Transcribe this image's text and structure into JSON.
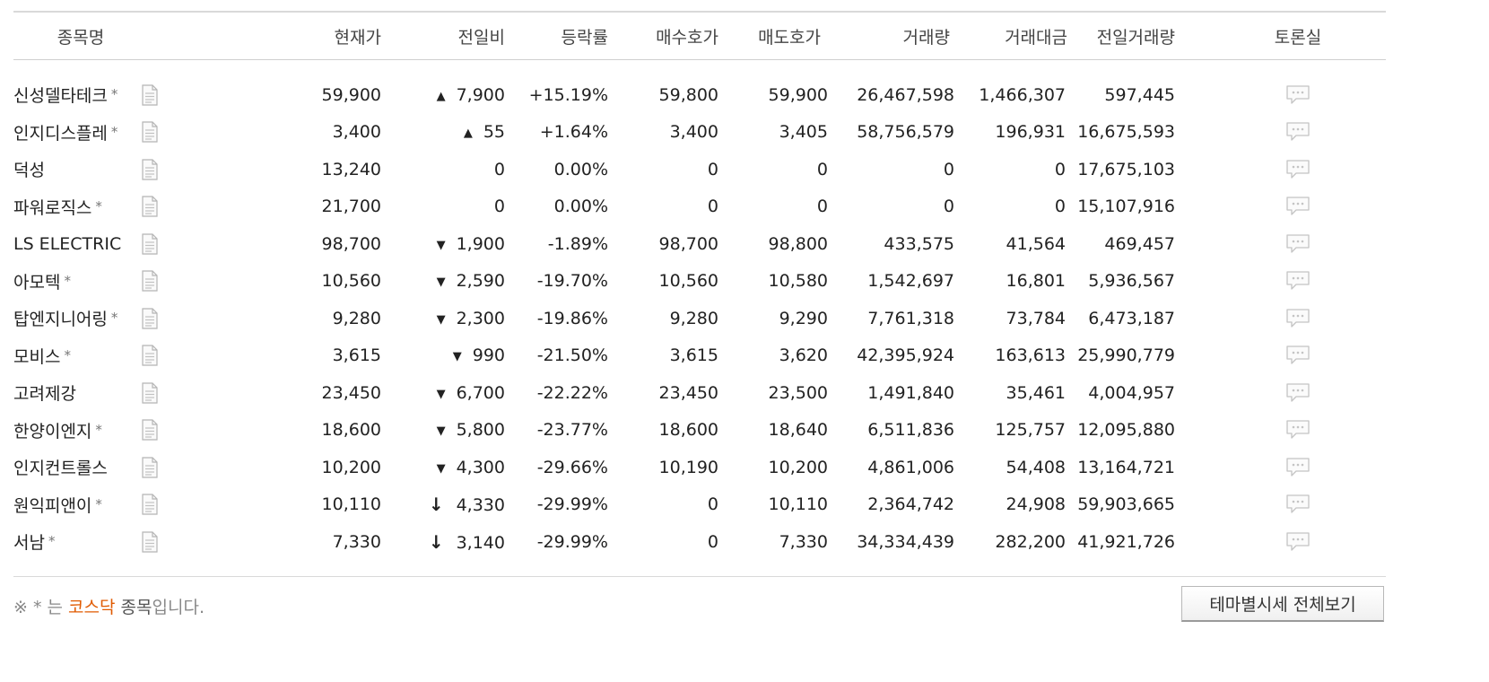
{
  "headers": {
    "name": "종목명",
    "price": "현재가",
    "change": "전일비",
    "rate": "등락률",
    "bid": "매수호가",
    "ask": "매도호가",
    "volume": "거래량",
    "amount": "거래대금",
    "prev_volume": "전일거래량",
    "forum": "토론실"
  },
  "kosdaq_mark": "*",
  "rows": [
    {
      "name": "신성델타테크",
      "kosdaq": true,
      "price": "59,900",
      "direction": "up",
      "change": "7,900",
      "rate": "+15.19%",
      "bid": "59,800",
      "ask": "59,900",
      "volume": "26,467,598",
      "amount": "1,466,307",
      "prev_volume": "597,445"
    },
    {
      "name": "인지디스플레",
      "kosdaq": true,
      "price": "3,400",
      "direction": "up",
      "change": "55",
      "rate": "+1.64%",
      "bid": "3,400",
      "ask": "3,405",
      "volume": "58,756,579",
      "amount": "196,931",
      "prev_volume": "16,675,593"
    },
    {
      "name": "덕성",
      "kosdaq": false,
      "price": "13,240",
      "direction": "flat",
      "change": "0",
      "rate": "0.00%",
      "bid": "0",
      "ask": "0",
      "volume": "0",
      "amount": "0",
      "prev_volume": "17,675,103"
    },
    {
      "name": "파워로직스",
      "kosdaq": true,
      "price": "21,700",
      "direction": "flat",
      "change": "0",
      "rate": "0.00%",
      "bid": "0",
      "ask": "0",
      "volume": "0",
      "amount": "0",
      "prev_volume": "15,107,916"
    },
    {
      "name": "LS ELECTRIC",
      "kosdaq": false,
      "price": "98,700",
      "direction": "down",
      "change": "1,900",
      "rate": "-1.89%",
      "bid": "98,700",
      "ask": "98,800",
      "volume": "433,575",
      "amount": "41,564",
      "prev_volume": "469,457"
    },
    {
      "name": "아모텍",
      "kosdaq": true,
      "price": "10,560",
      "direction": "down",
      "change": "2,590",
      "rate": "-19.70%",
      "bid": "10,560",
      "ask": "10,580",
      "volume": "1,542,697",
      "amount": "16,801",
      "prev_volume": "5,936,567"
    },
    {
      "name": "탑엔지니어링",
      "kosdaq": true,
      "price": "9,280",
      "direction": "down",
      "change": "2,300",
      "rate": "-19.86%",
      "bid": "9,280",
      "ask": "9,290",
      "volume": "7,761,318",
      "amount": "73,784",
      "prev_volume": "6,473,187"
    },
    {
      "name": "모비스",
      "kosdaq": true,
      "price": "3,615",
      "direction": "down",
      "change": "990",
      "rate": "-21.50%",
      "bid": "3,615",
      "ask": "3,620",
      "volume": "42,395,924",
      "amount": "163,613",
      "prev_volume": "25,990,779"
    },
    {
      "name": "고려제강",
      "kosdaq": false,
      "price": "23,450",
      "direction": "down",
      "change": "6,700",
      "rate": "-22.22%",
      "bid": "23,450",
      "ask": "23,500",
      "volume": "1,491,840",
      "amount": "35,461",
      "prev_volume": "4,004,957"
    },
    {
      "name": "한양이엔지",
      "kosdaq": true,
      "price": "18,600",
      "direction": "down",
      "change": "5,800",
      "rate": "-23.77%",
      "bid": "18,600",
      "ask": "18,640",
      "volume": "6,511,836",
      "amount": "125,757",
      "prev_volume": "12,095,880"
    },
    {
      "name": "인지컨트롤스",
      "kosdaq": false,
      "price": "10,200",
      "direction": "down",
      "change": "4,300",
      "rate": "-29.66%",
      "bid": "10,190",
      "ask": "10,200",
      "volume": "4,861,006",
      "amount": "54,408",
      "prev_volume": "13,164,721"
    },
    {
      "name": "원익피앤이",
      "kosdaq": true,
      "price": "10,110",
      "direction": "lower_limit",
      "change": "4,330",
      "rate": "-29.99%",
      "bid": "0",
      "ask": "10,110",
      "volume": "2,364,742",
      "amount": "24,908",
      "prev_volume": "59,903,665"
    },
    {
      "name": "서남",
      "kosdaq": true,
      "price": "7,330",
      "direction": "lower_limit",
      "change": "3,140",
      "rate": "-29.99%",
      "bid": "0",
      "ask": "7,330",
      "volume": "34,334,439",
      "amount": "282,200",
      "prev_volume": "41,921,726"
    }
  ],
  "footer": {
    "note_prefix": "※ * 는",
    "note_highlight": "코스닥",
    "note_dark": "종목",
    "note_suffix": "입니다.",
    "button_label": "테마별시세 전체보기"
  },
  "colors": {
    "up": "#d0021b",
    "down": "#1a4fe0"
  },
  "icons": {
    "up": "triangle-up-icon",
    "down": "triangle-down-icon",
    "lower_limit": "arrow-down-icon",
    "document": "document-icon",
    "forum": "speech-bubble-icon"
  }
}
